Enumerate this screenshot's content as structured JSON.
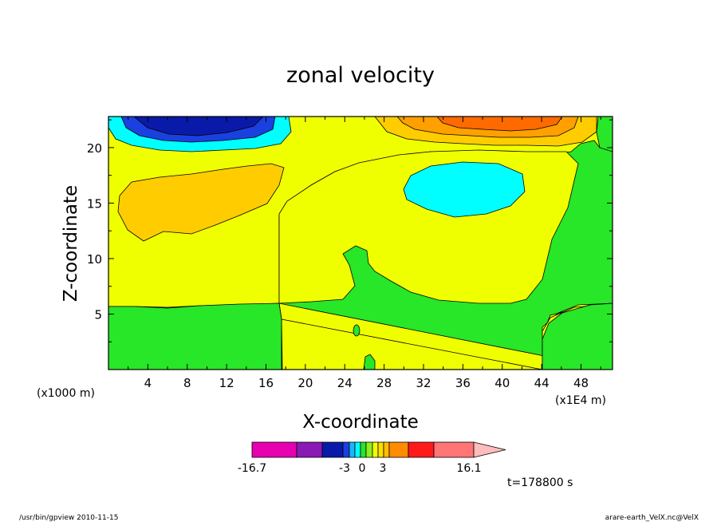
{
  "chart_data": {
    "type": "heatmap",
    "title": "zonal velocity",
    "xlabel": "X-coordinate",
    "ylabel": "Z-coordinate",
    "x_unit_left": "(x1000 m)",
    "x_unit_right": "(x1E4 m)",
    "xlim": [
      0,
      51.2
    ],
    "ylim": [
      0,
      22.8
    ],
    "x_ticks": [
      "4",
      "8",
      "12",
      "16",
      "20",
      "24",
      "28",
      "32",
      "36",
      "40",
      "44",
      "48"
    ],
    "y_ticks": [
      "5",
      "10",
      "15",
      "20"
    ],
    "x_tick_values": [
      4,
      8,
      12,
      16,
      20,
      24,
      28,
      32,
      36,
      40,
      44,
      48
    ],
    "y_tick_values": [
      5,
      10,
      15,
      20
    ],
    "colorbar": {
      "min_label": "-16.7",
      "max_label": "16.1",
      "mid_labels": [
        "-3",
        "0",
        "3"
      ],
      "colors": [
        "#e600b0",
        "#8a1ab5",
        "#0a1aa8",
        "#1a40e0",
        "#1ab4ff",
        "#00ffff",
        "#28e628",
        "#90ee20",
        "#f0ff00",
        "#ffdd00",
        "#ffbf00",
        "#ff8c00",
        "#ff1a1a",
        "#ff7575",
        "#ffbcbc"
      ]
    },
    "regions": [
      {
        "level": "-3..0",
        "color": "#28e628",
        "description": "broad weak negative flow region"
      },
      {
        "level": "0..3",
        "color": "#f0ff00",
        "description": "weak positive flow"
      },
      {
        "level": "3..6",
        "color": "#ffcc00",
        "description": "positive core near x=8, z=15"
      },
      {
        "level": "-6..-3",
        "color": "#00ffff",
        "description": "negative core near x=36, z=16.5"
      },
      {
        "level": "-16.7..-12",
        "color": "#0a1aa8",
        "description": "strong negative near top, x=6"
      },
      {
        "level": "12..16.1",
        "color": "#ff8c00",
        "description": "strong positive near top, x=38"
      }
    ],
    "time_label": "t=178800 s"
  },
  "footer": {
    "left": "/usr/bin/gpview   2010-11-15",
    "right": "arare-earth_VelX.nc@VelX"
  }
}
